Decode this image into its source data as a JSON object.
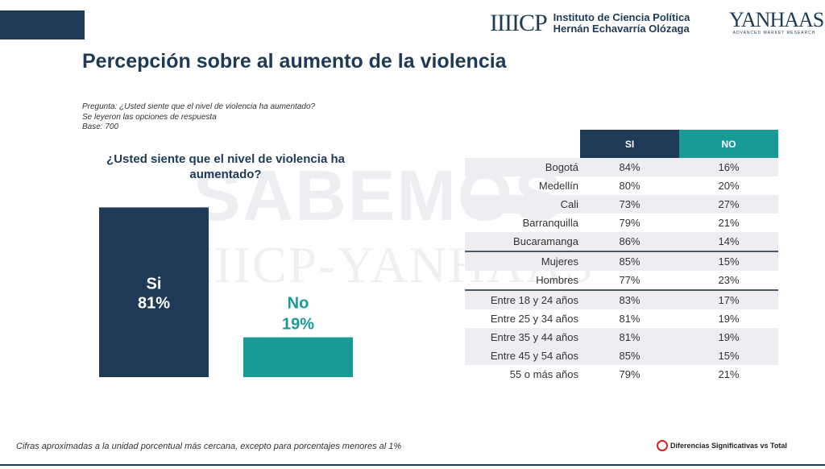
{
  "header": {
    "icp_mark": "IIIICP",
    "icp_line1": "Instituto de Ciencia Política",
    "icp_line2": "Hernán Echavarría Olózaga",
    "yanhaas_mark": "YANHAAS",
    "yanhaas_sub": "ADVANCED MARKET RESEARCH"
  },
  "title": "Percepción sobre al aumento de la violencia",
  "question_meta": {
    "pregunta": "Pregunta: ¿Usted siente que el nivel de violencia ha aumentado?",
    "nota": "Se leyeron las opciones de respuesta",
    "base": "Base: 700"
  },
  "watermark": {
    "line1": "SABEMOS",
    "line2": "IIICP-YANHAAS"
  },
  "colors": {
    "navy": "#1e3a56",
    "teal": "#1a9a96",
    "row_alt": "#eeeef2",
    "legend_red": "#e02020"
  },
  "chart_data": {
    "type": "bar",
    "title": "¿Usted siente que el nivel de violencia ha aumentado?",
    "categories": [
      "Si",
      "No"
    ],
    "values": [
      81,
      19
    ],
    "value_labels": [
      "81%",
      "19%"
    ],
    "colors": [
      "#1e3a56",
      "#1a9a96"
    ],
    "ylim": [
      0,
      100
    ]
  },
  "table": {
    "headers": [
      "SI",
      "NO"
    ],
    "rows": [
      {
        "label": "Bogotá",
        "si": "84%",
        "no": "16%"
      },
      {
        "label": "Medellín",
        "si": "80%",
        "no": "20%"
      },
      {
        "label": "Cali",
        "si": "73%",
        "no": "27%"
      },
      {
        "label": "Barranquilla",
        "si": "79%",
        "no": "21%"
      },
      {
        "label": "Bucaramanga",
        "si": "86%",
        "no": "14%"
      },
      {
        "label": "Mujeres",
        "si": "85%",
        "no": "15%"
      },
      {
        "label": "Hombres",
        "si": "77%",
        "no": "23%"
      },
      {
        "label": "Entre 18 y 24 años",
        "si": "83%",
        "no": "17%"
      },
      {
        "label": "Entre 25 y 34 años",
        "si": "81%",
        "no": "19%"
      },
      {
        "label": "Entre 35 y 44 años",
        "si": "81%",
        "no": "19%"
      },
      {
        "label": "Entre 45 y 54 años",
        "si": "85%",
        "no": "15%"
      },
      {
        "label": "55 o más años",
        "si": "79%",
        "no": "21%"
      }
    ]
  },
  "footnote": "Cifras aproximadas a la unidad porcentual más cercana, excepto para porcentajes menores al 1%",
  "legend": "Diferencias Significativas vs Total"
}
